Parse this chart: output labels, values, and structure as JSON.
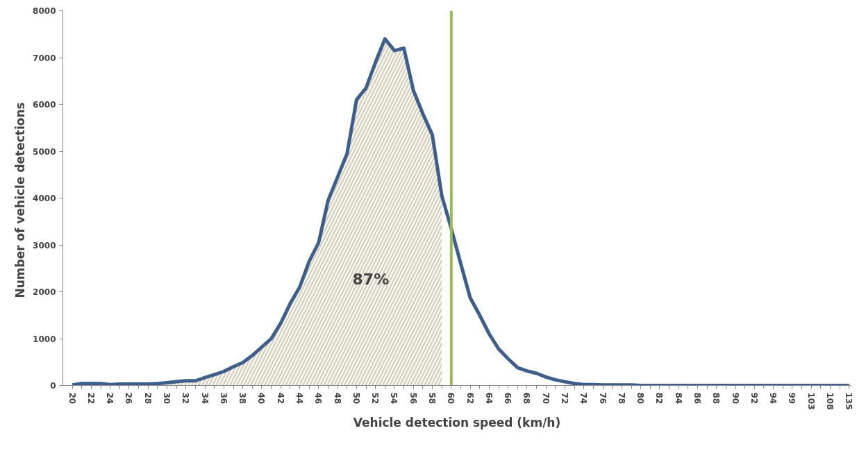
{
  "chart_data": {
    "type": "line",
    "xlabel": "Vehicle detection speed (km/h)",
    "ylabel": "Number  of vehicle detections",
    "categories": [
      "20",
      null,
      "22",
      null,
      "24",
      null,
      "26",
      null,
      "28",
      null,
      "30",
      null,
      "32",
      null,
      "34",
      null,
      "36",
      null,
      "38",
      null,
      "40",
      null,
      "42",
      null,
      "44",
      null,
      "46",
      null,
      "48",
      null,
      "50",
      null,
      "52",
      null,
      "54",
      null,
      "56",
      null,
      "58",
      null,
      "60",
      null,
      "62",
      null,
      "64",
      null,
      "66",
      null,
      "68",
      null,
      "70",
      null,
      "72",
      null,
      "74",
      null,
      "76",
      null,
      "78",
      null,
      "80",
      null,
      "82",
      null,
      "84",
      null,
      "86",
      null,
      "88",
      null,
      "90",
      null,
      "92",
      null,
      "94",
      null,
      "99",
      null,
      "103",
      null,
      "108",
      null,
      "135"
    ],
    "series": [
      {
        "type": "area",
        "color": "#d6d1bb",
        "values": [
          10,
          40,
          40,
          40,
          20,
          30,
          30,
          30,
          30,
          40,
          60,
          80,
          100,
          100,
          170,
          230,
          300,
          400,
          490,
          640,
          820,
          1000,
          1330,
          1750,
          2100,
          2650,
          3050,
          3950,
          4450,
          4950,
          6100,
          6350,
          6900,
          7400,
          7150,
          7200,
          6300,
          5800,
          5350,
          4050,
          null,
          null,
          null,
          null,
          null,
          null,
          null,
          null,
          null,
          null,
          null,
          null,
          null,
          null,
          null,
          null,
          null,
          null,
          null,
          null,
          null,
          null,
          null,
          null,
          null,
          null,
          null,
          null,
          null,
          null,
          null,
          null,
          null,
          null,
          null,
          null,
          null,
          null,
          null,
          null,
          null,
          null,
          null
        ]
      },
      {
        "color": "#3e5f8c",
        "values": [
          10,
          40,
          40,
          40,
          20,
          30,
          30,
          30,
          30,
          40,
          60,
          80,
          100,
          100,
          170,
          230,
          300,
          400,
          490,
          640,
          820,
          1000,
          1330,
          1750,
          2100,
          2650,
          3050,
          3950,
          4450,
          4950,
          6100,
          6350,
          6900,
          7400,
          7150,
          7200,
          6300,
          5800,
          5350,
          4050,
          3350,
          2600,
          1870,
          1500,
          1100,
          780,
          570,
          380,
          310,
          260,
          180,
          120,
          80,
          40,
          20,
          20,
          10,
          10,
          10,
          10,
          0,
          0,
          0,
          0,
          0,
          0,
          0,
          0,
          0,
          0,
          0,
          0,
          0,
          0,
          0,
          0,
          0,
          0,
          0,
          0,
          0,
          0,
          0
        ]
      }
    ],
    "ref_lines": [
      {
        "axis": "x",
        "value": "60",
        "color": "#9bbb59"
      }
    ],
    "annotations": [
      "87%"
    ],
    "ylim": [
      0,
      8000
    ],
    "yticks": [
      0,
      1000,
      2000,
      3000,
      4000,
      5000,
      6000,
      7000,
      8000
    ],
    "grid": false,
    "marker": "none"
  }
}
